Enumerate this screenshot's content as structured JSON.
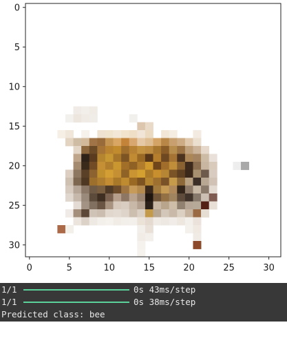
{
  "plot": {
    "x_ticks": [
      "0",
      "5",
      "10",
      "15",
      "20",
      "25",
      "30"
    ],
    "y_ticks": [
      "0",
      "5",
      "10",
      "15",
      "20",
      "25",
      "30"
    ]
  },
  "image_pixels": [
    [
      6,
      13,
      "#f0ebe6"
    ],
    [
      7,
      13,
      "#f2efea"
    ],
    [
      8,
      13,
      "#f0ebe5"
    ],
    [
      5,
      14,
      "#f3f1ee"
    ],
    [
      6,
      14,
      "#ede6de"
    ],
    [
      7,
      14,
      "#f0ebe5"
    ],
    [
      8,
      14,
      "#f0ece7"
    ],
    [
      13,
      14,
      "#f2f0ec"
    ],
    [
      14,
      15,
      "#dcc6ae"
    ],
    [
      15,
      15,
      "#e9d9c7"
    ],
    [
      4,
      16,
      "#f5efe5"
    ],
    [
      5,
      16,
      "#f0e6d9"
    ],
    [
      7,
      16,
      "#f6f1ea"
    ],
    [
      9,
      16,
      "#efe2d1"
    ],
    [
      10,
      16,
      "#f1e4cf"
    ],
    [
      11,
      16,
      "#f3e8d8"
    ],
    [
      12,
      16,
      "#f1e3cc"
    ],
    [
      13,
      16,
      "#efdfc7"
    ],
    [
      14,
      16,
      "#f0e5d6"
    ],
    [
      15,
      16,
      "#ecdac0"
    ],
    [
      17,
      16,
      "#f2e7d7"
    ],
    [
      18,
      16,
      "#f5ede1"
    ],
    [
      21,
      16,
      "#f3ebe1"
    ],
    [
      5,
      17,
      "#e3d4c2"
    ],
    [
      6,
      17,
      "#cfbca5"
    ],
    [
      7,
      17,
      "#d2b999"
    ],
    [
      8,
      17,
      "#a17448"
    ],
    [
      9,
      17,
      "#9a6b3a"
    ],
    [
      10,
      17,
      "#c49552"
    ],
    [
      11,
      17,
      "#d9a663"
    ],
    [
      12,
      17,
      "#c3843a"
    ],
    [
      13,
      17,
      "#d8a770"
    ],
    [
      14,
      17,
      "#e5c9a7"
    ],
    [
      15,
      17,
      "#dfbd92"
    ],
    [
      16,
      17,
      "#d4a467"
    ],
    [
      17,
      17,
      "#b88748"
    ],
    [
      18,
      17,
      "#c8a06f"
    ],
    [
      19,
      17,
      "#cdac85"
    ],
    [
      20,
      17,
      "#e0c8ac"
    ],
    [
      21,
      17,
      "#ebdfd0"
    ],
    [
      6,
      18,
      "#e4d6c6"
    ],
    [
      7,
      18,
      "#8c663c"
    ],
    [
      8,
      18,
      "#6b4a28"
    ],
    [
      9,
      18,
      "#a57436"
    ],
    [
      10,
      18,
      "#b98330"
    ],
    [
      11,
      18,
      "#c18b2e"
    ],
    [
      12,
      18,
      "#a06f2e"
    ],
    [
      13,
      18,
      "#b88234"
    ],
    [
      14,
      18,
      "#c39341"
    ],
    [
      15,
      18,
      "#bd8c40"
    ],
    [
      16,
      18,
      "#a8772f"
    ],
    [
      17,
      18,
      "#8a5c28"
    ],
    [
      18,
      18,
      "#b78d4e"
    ],
    [
      19,
      18,
      "#9b7344"
    ],
    [
      20,
      18,
      "#bfa07d"
    ],
    [
      21,
      18,
      "#cbb49a"
    ],
    [
      22,
      18,
      "#e6d9cb"
    ],
    [
      6,
      19,
      "#bfa68a"
    ],
    [
      7,
      19,
      "#2f2218"
    ],
    [
      8,
      19,
      "#5a3b20"
    ],
    [
      9,
      19,
      "#b5852f"
    ],
    [
      10,
      19,
      "#c79734"
    ],
    [
      11,
      19,
      "#a8762a"
    ],
    [
      12,
      19,
      "#7d5525"
    ],
    [
      13,
      19,
      "#c08b32"
    ],
    [
      14,
      19,
      "#9a6a24"
    ],
    [
      15,
      19,
      "#583718"
    ],
    [
      16,
      19,
      "#b47e2c"
    ],
    [
      17,
      19,
      "#6e4820"
    ],
    [
      18,
      19,
      "#a57434"
    ],
    [
      19,
      19,
      "#4b3320"
    ],
    [
      20,
      19,
      "#ad8658"
    ],
    [
      21,
      19,
      "#a48460"
    ],
    [
      22,
      19,
      "#cdbba5"
    ],
    [
      23,
      19,
      "#e9e1d9"
    ],
    [
      6,
      20,
      "#a58c71"
    ],
    [
      7,
      20,
      "#3a2a1a"
    ],
    [
      8,
      20,
      "#704b26"
    ],
    [
      9,
      20,
      "#c48f35"
    ],
    [
      10,
      20,
      "#b07e2c"
    ],
    [
      11,
      20,
      "#c9962f"
    ],
    [
      12,
      20,
      "#a16f27"
    ],
    [
      13,
      20,
      "#8f6124"
    ],
    [
      14,
      20,
      "#b17d2c"
    ],
    [
      15,
      20,
      "#d19a2e"
    ],
    [
      16,
      20,
      "#6f4619"
    ],
    [
      17,
      20,
      "#a06d2a"
    ],
    [
      18,
      20,
      "#c08e3a"
    ],
    [
      19,
      20,
      "#8a6232"
    ],
    [
      20,
      20,
      "#3d2a1c"
    ],
    [
      21,
      20,
      "#8b6d4f"
    ],
    [
      22,
      20,
      "#c9b6a0"
    ],
    [
      23,
      20,
      "#d9cbbb"
    ],
    [
      26,
      20,
      "#eeeeee"
    ],
    [
      27,
      20,
      "#a9a9a9"
    ],
    [
      5,
      21,
      "#dccfc2"
    ],
    [
      6,
      21,
      "#8e7761"
    ],
    [
      7,
      21,
      "#5a4026"
    ],
    [
      8,
      21,
      "#8c6330"
    ],
    [
      9,
      21,
      "#c1902e"
    ],
    [
      10,
      21,
      "#d39f34"
    ],
    [
      11,
      21,
      "#c49033"
    ],
    [
      12,
      21,
      "#8f6226"
    ],
    [
      13,
      21,
      "#c99431"
    ],
    [
      14,
      21,
      "#d4a02f"
    ],
    [
      15,
      21,
      "#aa7a28"
    ],
    [
      16,
      21,
      "#c78f2d"
    ],
    [
      17,
      21,
      "#b68634"
    ],
    [
      18,
      21,
      "#7a5326"
    ],
    [
      19,
      21,
      "#5f3f22"
    ],
    [
      20,
      21,
      "#3b281b"
    ],
    [
      21,
      21,
      "#a7906f"
    ],
    [
      22,
      21,
      "#6e5a4a"
    ],
    [
      23,
      21,
      "#d8ccc0"
    ],
    [
      5,
      22,
      "#cfc1b1"
    ],
    [
      6,
      22,
      "#7d6750"
    ],
    [
      7,
      22,
      "#4e3823"
    ],
    [
      8,
      22,
      "#9c6f2d"
    ],
    [
      9,
      22,
      "#ae7d2f"
    ],
    [
      10,
      22,
      "#c48d34"
    ],
    [
      11,
      22,
      "#a97829"
    ],
    [
      12,
      22,
      "#be8b31"
    ],
    [
      13,
      22,
      "#9a6a25"
    ],
    [
      14,
      22,
      "#7d5321"
    ],
    [
      15,
      22,
      "#b48530"
    ],
    [
      16,
      22,
      "#9e7030"
    ],
    [
      17,
      22,
      "#7a5228"
    ],
    [
      18,
      22,
      "#c69a4b"
    ],
    [
      19,
      22,
      "#8d6839"
    ],
    [
      20,
      22,
      "#b8a082"
    ],
    [
      21,
      22,
      "#3a2e26"
    ],
    [
      22,
      22,
      "#b7a793"
    ],
    [
      23,
      22,
      "#d0c3b5"
    ],
    [
      5,
      23,
      "#d7cbbf"
    ],
    [
      6,
      23,
      "#b5a697"
    ],
    [
      7,
      23,
      "#8b7866"
    ],
    [
      8,
      23,
      "#6f5a45"
    ],
    [
      9,
      23,
      "#7a5f40"
    ],
    [
      10,
      23,
      "#4f3a27"
    ],
    [
      11,
      23,
      "#6c4c2b"
    ],
    [
      12,
      23,
      "#9e7442"
    ],
    [
      13,
      23,
      "#c79b59"
    ],
    [
      14,
      23,
      "#b48a4e"
    ],
    [
      15,
      23,
      "#3b2a1c"
    ],
    [
      16,
      23,
      "#a27a3e"
    ],
    [
      17,
      23,
      "#c59a54"
    ],
    [
      18,
      23,
      "#af885b"
    ],
    [
      19,
      23,
      "#332519"
    ],
    [
      20,
      23,
      "#8e7a68"
    ],
    [
      21,
      23,
      "#c7b8a6"
    ],
    [
      22,
      23,
      "#8a7a6c"
    ],
    [
      23,
      23,
      "#e3dbd2"
    ],
    [
      5,
      24,
      "#e0d7ce"
    ],
    [
      6,
      24,
      "#c6b9ab"
    ],
    [
      7,
      24,
      "#9a8a7b"
    ],
    [
      8,
      24,
      "#5c4a3b"
    ],
    [
      9,
      24,
      "#3f2f22"
    ],
    [
      10,
      24,
      "#7b6250"
    ],
    [
      11,
      24,
      "#b59f8c"
    ],
    [
      12,
      24,
      "#8e7664"
    ],
    [
      13,
      24,
      "#b9a38e"
    ],
    [
      14,
      24,
      "#9b8470"
    ],
    [
      15,
      24,
      "#1f1610"
    ],
    [
      16,
      24,
      "#705538"
    ],
    [
      17,
      24,
      "#947045"
    ],
    [
      18,
      24,
      "#a0835f"
    ],
    [
      19,
      24,
      "#5e4b3b"
    ],
    [
      20,
      24,
      "#3f332b"
    ],
    [
      21,
      24,
      "#86786b"
    ],
    [
      22,
      24,
      "#cbbfb3"
    ],
    [
      23,
      24,
      "#7e5c52"
    ],
    [
      6,
      25,
      "#e4dcd4"
    ],
    [
      7,
      25,
      "#a39384"
    ],
    [
      8,
      25,
      "#81705f"
    ],
    [
      9,
      25,
      "#6a5443"
    ],
    [
      10,
      25,
      "#a89280"
    ],
    [
      11,
      25,
      "#d7c9bb"
    ],
    [
      12,
      25,
      "#d9cdc2"
    ],
    [
      13,
      25,
      "#c8b8a8"
    ],
    [
      14,
      25,
      "#b5a290"
    ],
    [
      15,
      25,
      "#2c221a"
    ],
    [
      16,
      25,
      "#c8b7a3"
    ],
    [
      17,
      25,
      "#b9a48c"
    ],
    [
      18,
      25,
      "#cdbda9"
    ],
    [
      19,
      25,
      "#918170"
    ],
    [
      20,
      25,
      "#b5a696"
    ],
    [
      21,
      25,
      "#b7a998"
    ],
    [
      22,
      25,
      "#541f14"
    ],
    [
      23,
      25,
      "#e8dfd6"
    ],
    [
      5,
      26,
      "#f0ebe6"
    ],
    [
      6,
      26,
      "#a48f7c"
    ],
    [
      7,
      26,
      "#5d4737"
    ],
    [
      8,
      26,
      "#cfc3b8"
    ],
    [
      9,
      26,
      "#cbbdaf"
    ],
    [
      10,
      26,
      "#e1d7cd"
    ],
    [
      11,
      26,
      "#e3dad1"
    ],
    [
      12,
      26,
      "#dfd4c9"
    ],
    [
      13,
      26,
      "#cdbfb0"
    ],
    [
      14,
      26,
      "#dbd0c4"
    ],
    [
      15,
      26,
      "#c39a4a"
    ],
    [
      16,
      26,
      "#b7a692"
    ],
    [
      17,
      26,
      "#d3c7ba"
    ],
    [
      18,
      26,
      "#c8b9a8"
    ],
    [
      19,
      26,
      "#dcd0c3"
    ],
    [
      20,
      26,
      "#c6b4a0"
    ],
    [
      21,
      26,
      "#9a6a45"
    ],
    [
      22,
      26,
      "#e6ddd3"
    ],
    [
      6,
      27,
      "#ece5de"
    ],
    [
      7,
      27,
      "#dcd2c8"
    ],
    [
      8,
      27,
      "#efe9e3"
    ],
    [
      9,
      27,
      "#f3efea"
    ],
    [
      10,
      27,
      "#f5f2ee"
    ],
    [
      11,
      27,
      "#f1ece6"
    ],
    [
      12,
      27,
      "#f2eee9"
    ],
    [
      13,
      27,
      "#f3efea"
    ],
    [
      14,
      27,
      "#ebe2d8"
    ],
    [
      15,
      27,
      "#e4dacf"
    ],
    [
      16,
      27,
      "#f0ebe5"
    ],
    [
      17,
      27,
      "#eee8e2"
    ],
    [
      18,
      27,
      "#f1ece7"
    ],
    [
      19,
      27,
      "#ede7e0"
    ],
    [
      20,
      27,
      "#f3efeb"
    ],
    [
      21,
      27,
      "#ebe3db"
    ],
    [
      4,
      28,
      "#ad6a48"
    ],
    [
      5,
      28,
      "#f3efe9"
    ],
    [
      14,
      28,
      "#f2eee9"
    ],
    [
      15,
      28,
      "#e9e1d8"
    ],
    [
      20,
      28,
      "#f4f1ed"
    ],
    [
      21,
      28,
      "#efe9e2"
    ],
    [
      14,
      29,
      "#f1ece6"
    ],
    [
      15,
      29,
      "#f3efea"
    ],
    [
      21,
      29,
      "#f0ebe5"
    ],
    [
      14,
      30,
      "#f5f2ee"
    ],
    [
      21,
      30,
      "#8c4a2a"
    ],
    [
      14,
      31,
      "#f6f3ef"
    ]
  ],
  "console": {
    "lines": [
      {
        "step": "1/1",
        "timing": "0s 43ms/step"
      },
      {
        "step": "1/1",
        "timing": "0s 38ms/step"
      }
    ],
    "prediction": "Predicted class: bee"
  },
  "colors": {
    "console_bg": "#383838",
    "console_text": "#e8e8e8",
    "progress_bar": "#5bd39a"
  }
}
